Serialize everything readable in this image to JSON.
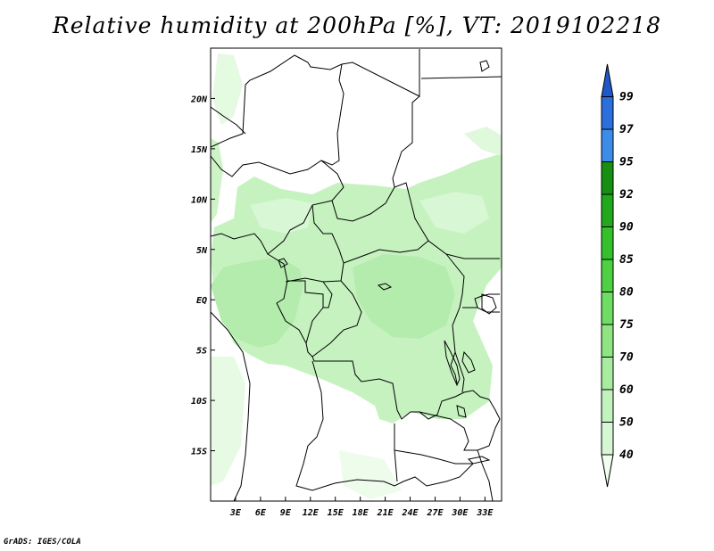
{
  "title": "Relative humidity at 200hPa [%], VT: 2019102218",
  "credit": "GrADS: IGES/COLA",
  "map": {
    "lon_range": [
      0,
      35
    ],
    "lat_range": [
      -20,
      25
    ],
    "lon_ticks": [
      "3E",
      "6E",
      "9E",
      "12E",
      "15E",
      "18E",
      "21E",
      "24E",
      "27E",
      "30E",
      "33E"
    ],
    "lat_ticks": [
      "20N",
      "15N",
      "10N",
      "5N",
      "EQ",
      "5S",
      "10S",
      "15S"
    ],
    "background_color": "#ffffff",
    "coastline_color": "#000000"
  },
  "colorbar": {
    "labels": [
      "40",
      "50",
      "60",
      "70",
      "75",
      "80",
      "85",
      "90",
      "92",
      "95",
      "97",
      "99"
    ],
    "colors": [
      "#f0fff0",
      "#d6f7d3",
      "#c2f2bd",
      "#a8eca0",
      "#8fe584",
      "#6fdc63",
      "#4ed143",
      "#34c12c",
      "#22a81c",
      "#168f12",
      "#3b8de8",
      "#2a6fdc",
      "#1f58c8"
    ]
  }
}
